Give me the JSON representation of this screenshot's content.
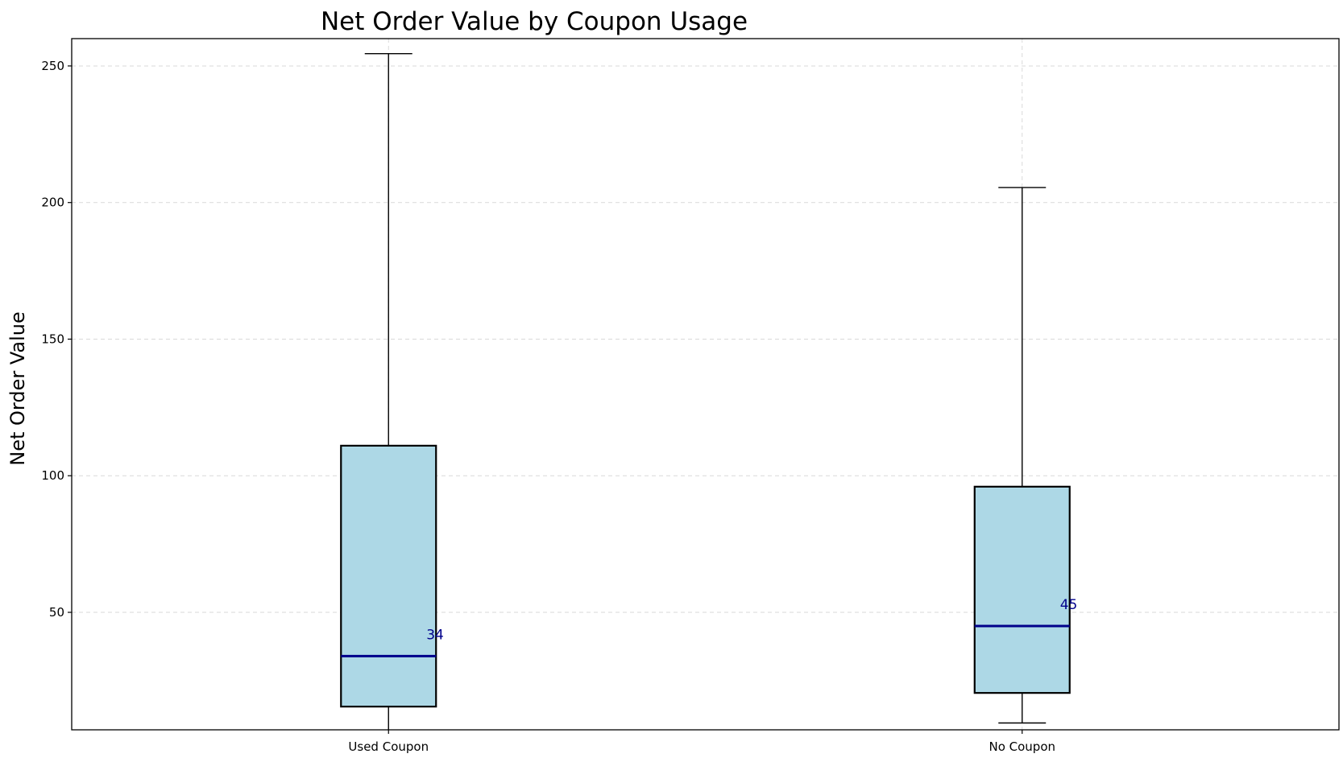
{
  "chart_data": {
    "type": "box",
    "title": "Net Order Value by Coupon Usage",
    "xlabel": "",
    "ylabel": "Net Order Value",
    "ylim": [
      7,
      260
    ],
    "yticks": [
      50,
      100,
      150,
      200,
      250
    ],
    "grid": true,
    "categories": [
      "Used Coupon",
      "No Coupon"
    ],
    "boxes": [
      {
        "category": "Used Coupon",
        "whisker_low": 6,
        "q1": 15.5,
        "median": 34,
        "q3": 111,
        "whisker_high": 254.5,
        "median_label": "34"
      },
      {
        "category": "No Coupon",
        "whisker_low": 9.5,
        "q1": 20.5,
        "median": 45,
        "q3": 96,
        "whisker_high": 205.5,
        "median_label": "45"
      }
    ],
    "colors": {
      "box_fill": "#add8e6",
      "box_edge": "#000000",
      "median_line": "#00008b",
      "median_label": "#00008b",
      "grid": "#d9d9d9"
    }
  }
}
